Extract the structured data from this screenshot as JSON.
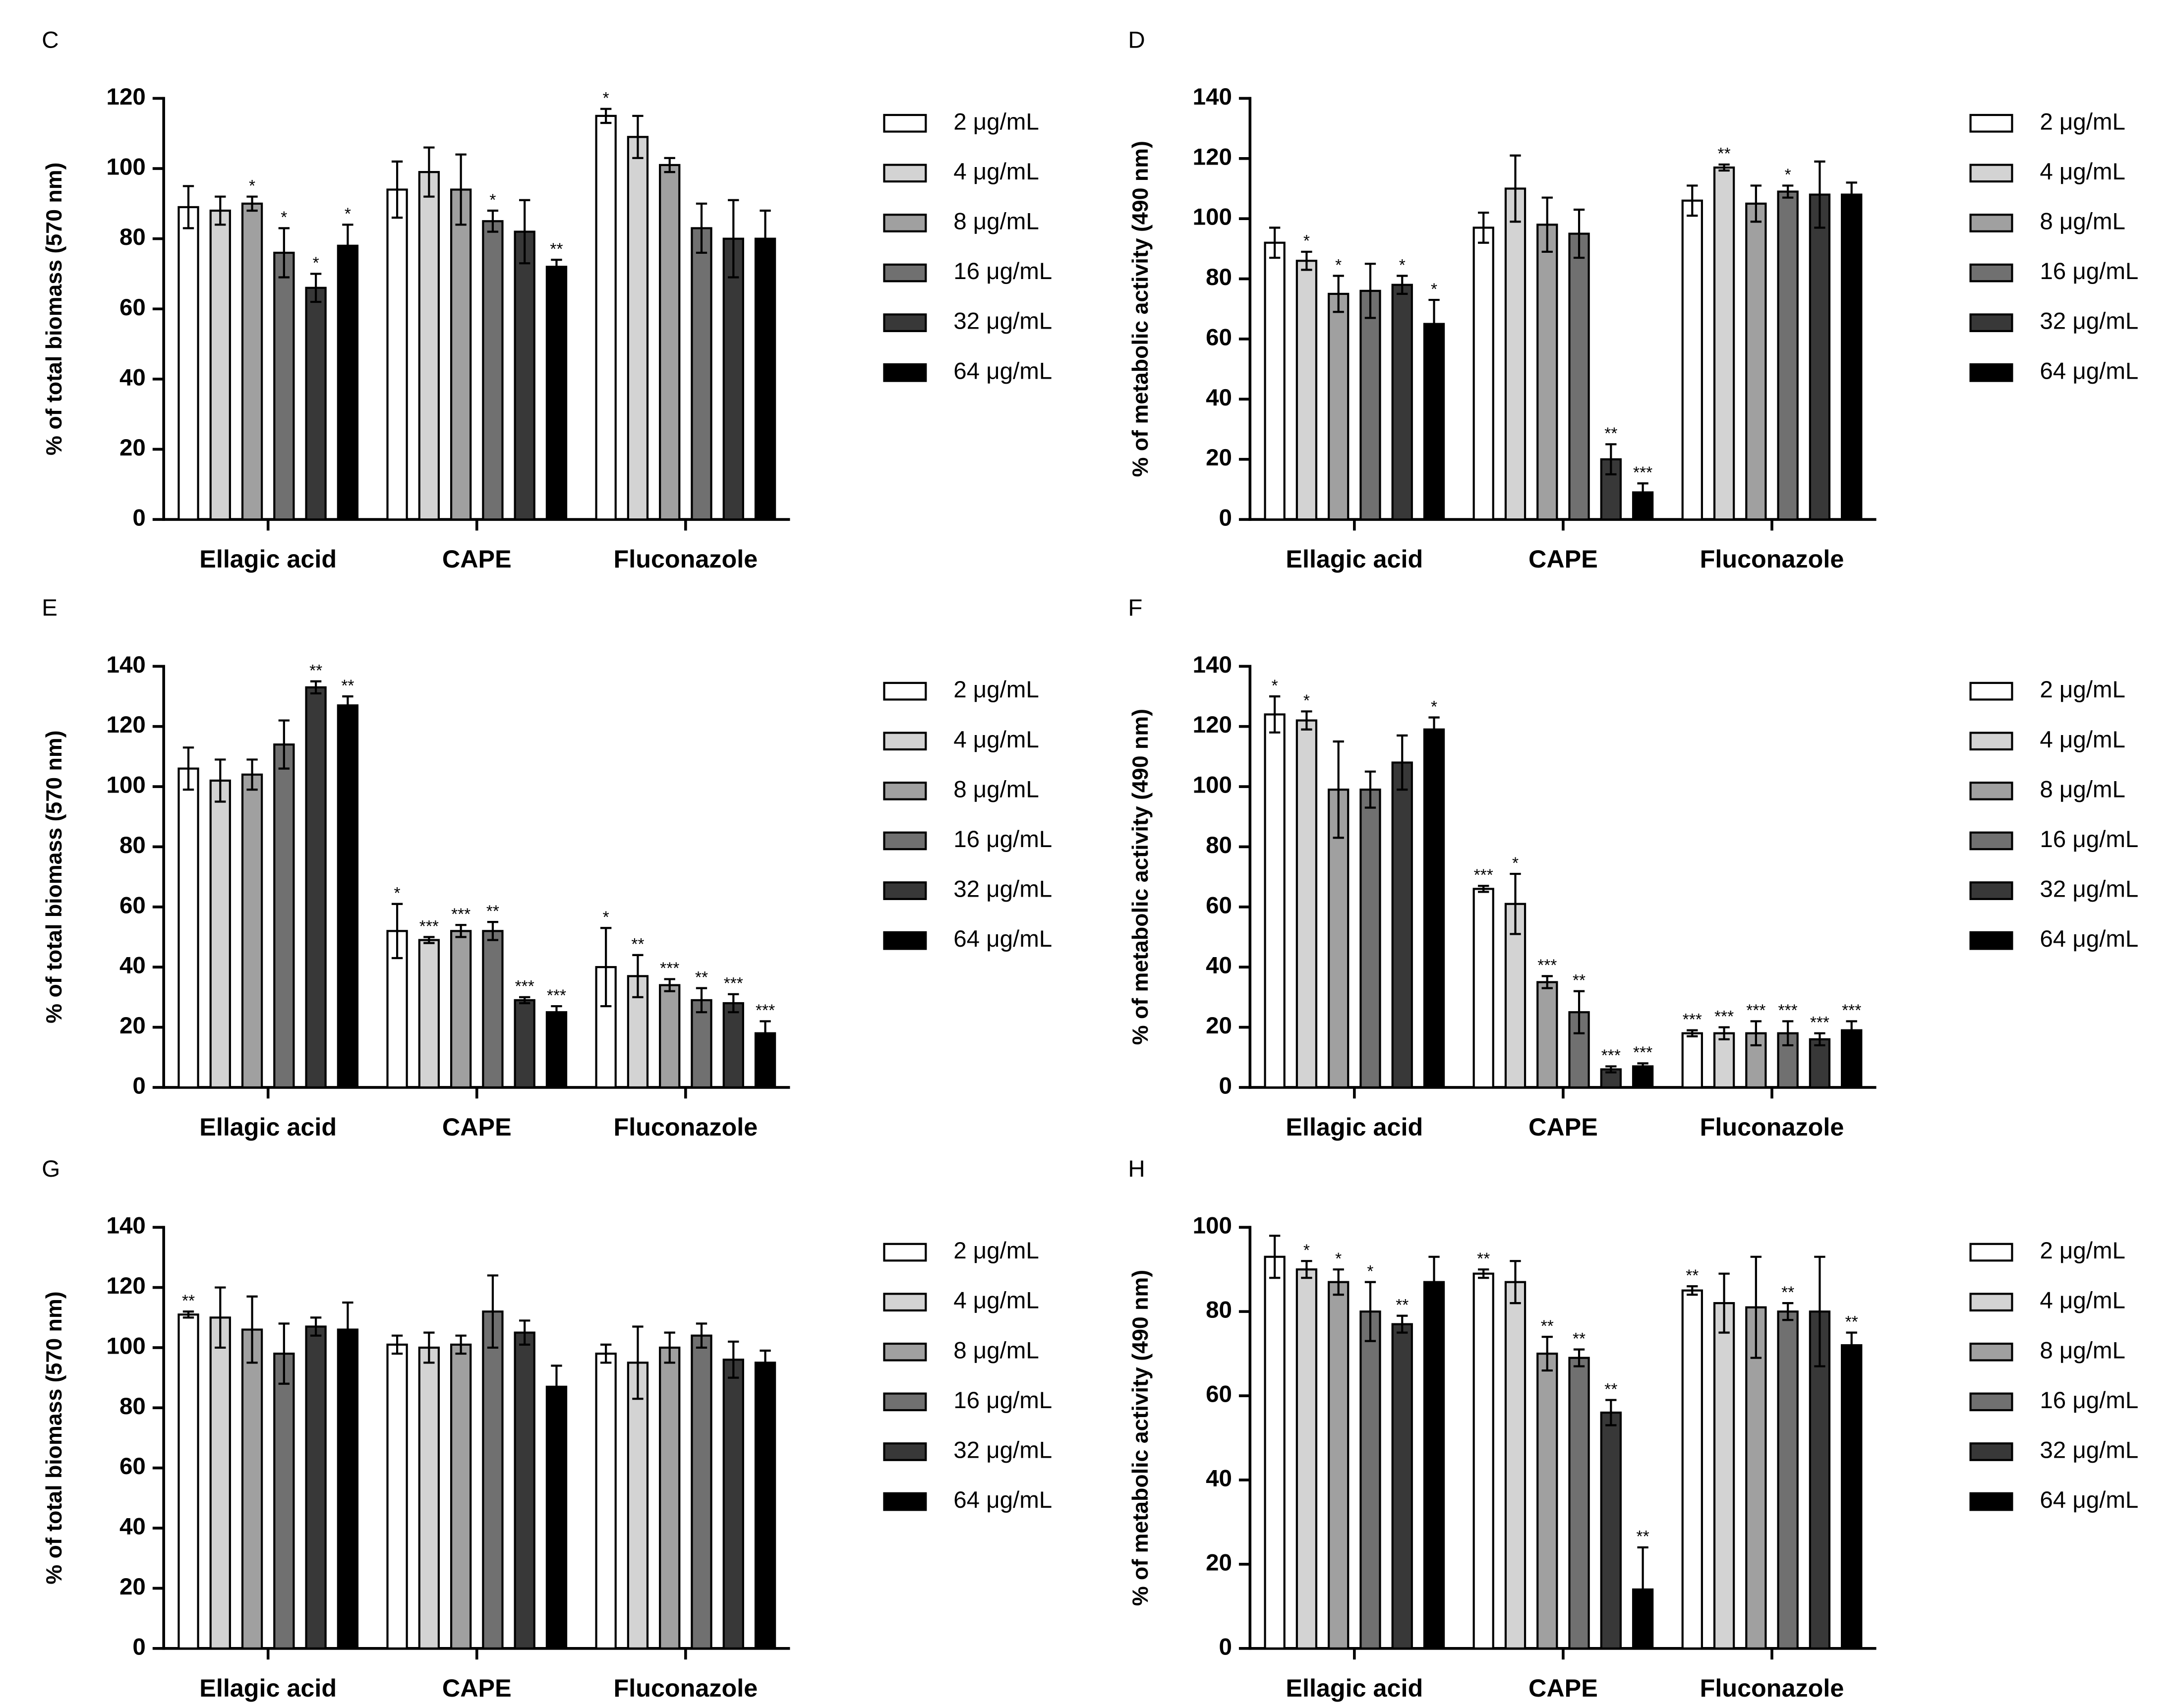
{
  "chart_data": [
    {
      "type": "bar",
      "panel": "C",
      "ylabel": "% of total biomass (570 nm)",
      "categories": [
        "Ellagic acid",
        "CAPE",
        "Fluconazole"
      ],
      "ylim": [
        0,
        120
      ],
      "yticks": [
        0,
        20,
        40,
        60,
        80,
        100,
        120
      ],
      "series": [
        {
          "name": "2 μg/mL",
          "color": "#ffffff",
          "values": [
            89,
            94,
            115
          ],
          "errors": [
            6,
            8,
            2
          ],
          "significance": [
            null,
            null,
            "*"
          ]
        },
        {
          "name": "4 μg/mL",
          "color": "#d3d3d3",
          "values": [
            88,
            99,
            109
          ],
          "errors": [
            4,
            7,
            6
          ],
          "significance": [
            null,
            null,
            null
          ]
        },
        {
          "name": "8 μg/mL",
          "color": "#a0a0a0",
          "values": [
            90,
            94,
            101
          ],
          "errors": [
            2,
            10,
            2
          ],
          "significance": [
            "*",
            null,
            null
          ]
        },
        {
          "name": "16 μg/mL",
          "color": "#707070",
          "values": [
            76,
            85,
            83
          ],
          "errors": [
            7,
            3,
            7
          ],
          "significance": [
            "*",
            "*",
            null
          ]
        },
        {
          "name": "32 μg/mL",
          "color": "#383838",
          "values": [
            66,
            82,
            80
          ],
          "errors": [
            4,
            9,
            11
          ],
          "significance": [
            "*",
            null,
            null
          ]
        },
        {
          "name": "64 μg/mL",
          "color": "#000000",
          "values": [
            78,
            72,
            80
          ],
          "errors": [
            6,
            2,
            8
          ],
          "significance": [
            "*",
            "**",
            null
          ]
        }
      ]
    },
    {
      "type": "bar",
      "panel": "D",
      "ylabel": "% of metabolic activity (490 nm)",
      "categories": [
        "Ellagic acid",
        "CAPE",
        "Fluconazole"
      ],
      "ylim": [
        0,
        140
      ],
      "yticks": [
        0,
        20,
        40,
        60,
        80,
        100,
        120,
        140
      ],
      "series": [
        {
          "name": "2 μg/mL",
          "color": "#ffffff",
          "values": [
            92,
            97,
            106
          ],
          "errors": [
            5,
            5,
            5
          ],
          "significance": [
            null,
            null,
            null
          ]
        },
        {
          "name": "4 μg/mL",
          "color": "#d3d3d3",
          "values": [
            86,
            110,
            117
          ],
          "errors": [
            3,
            11,
            1
          ],
          "significance": [
            "*",
            null,
            "**"
          ]
        },
        {
          "name": "8 μg/mL",
          "color": "#a0a0a0",
          "values": [
            75,
            98,
            105
          ],
          "errors": [
            6,
            9,
            6
          ],
          "significance": [
            "*",
            null,
            null
          ]
        },
        {
          "name": "16 μg/mL",
          "color": "#707070",
          "values": [
            76,
            95,
            109
          ],
          "errors": [
            9,
            8,
            2
          ],
          "significance": [
            null,
            null,
            "*"
          ]
        },
        {
          "name": "32 μg/mL",
          "color": "#383838",
          "values": [
            78,
            20,
            108
          ],
          "errors": [
            3,
            5,
            11
          ],
          "significance": [
            "*",
            "**",
            null
          ]
        },
        {
          "name": "64 μg/mL",
          "color": "#000000",
          "values": [
            65,
            9,
            108
          ],
          "errors": [
            8,
            3,
            4
          ],
          "significance": [
            "*",
            "***",
            null
          ]
        }
      ]
    },
    {
      "type": "bar",
      "panel": "E",
      "ylabel": "% of total biomass (570 nm)",
      "categories": [
        "Ellagic acid",
        "CAPE",
        "Fluconazole"
      ],
      "ylim": [
        0,
        140
      ],
      "yticks": [
        0,
        20,
        40,
        60,
        80,
        100,
        120,
        140
      ],
      "series": [
        {
          "name": "2 μg/mL",
          "color": "#ffffff",
          "values": [
            106,
            52,
            40
          ],
          "errors": [
            7,
            9,
            13
          ],
          "significance": [
            null,
            "*",
            "*"
          ]
        },
        {
          "name": "4 μg/mL",
          "color": "#d3d3d3",
          "values": [
            102,
            49,
            37
          ],
          "errors": [
            7,
            1,
            7
          ],
          "significance": [
            null,
            "***",
            "**"
          ]
        },
        {
          "name": "8 μg/mL",
          "color": "#a0a0a0",
          "values": [
            104,
            52,
            34
          ],
          "errors": [
            5,
            2,
            2
          ],
          "significance": [
            null,
            "***",
            "***"
          ]
        },
        {
          "name": "16 μg/mL",
          "color": "#707070",
          "values": [
            114,
            52,
            29
          ],
          "errors": [
            8,
            3,
            4
          ],
          "significance": [
            null,
            "**",
            "**"
          ]
        },
        {
          "name": "32 μg/mL",
          "color": "#383838",
          "values": [
            133,
            29,
            28
          ],
          "errors": [
            2,
            1,
            3
          ],
          "significance": [
            "**",
            "***",
            "***"
          ]
        },
        {
          "name": "64 μg/mL",
          "color": "#000000",
          "values": [
            127,
            25,
            18
          ],
          "errors": [
            3,
            2,
            4
          ],
          "significance": [
            "**",
            "***",
            "***"
          ]
        }
      ]
    },
    {
      "type": "bar",
      "panel": "F",
      "ylabel": "% of metabolic activity (490 nm)",
      "categories": [
        "Ellagic acid",
        "CAPE",
        "Fluconazole"
      ],
      "ylim": [
        0,
        140
      ],
      "yticks": [
        0,
        20,
        40,
        60,
        80,
        100,
        120,
        140
      ],
      "series": [
        {
          "name": "2 μg/mL",
          "color": "#ffffff",
          "values": [
            124,
            66,
            18
          ],
          "errors": [
            6,
            1,
            1
          ],
          "significance": [
            "*",
            "***",
            "***"
          ]
        },
        {
          "name": "4 μg/mL",
          "color": "#d3d3d3",
          "values": [
            122,
            61,
            18
          ],
          "errors": [
            3,
            10,
            2
          ],
          "significance": [
            "*",
            "*",
            "***"
          ]
        },
        {
          "name": "8 μg/mL",
          "color": "#a0a0a0",
          "values": [
            99,
            35,
            18
          ],
          "errors": [
            16,
            2,
            4
          ],
          "significance": [
            null,
            "***",
            "***"
          ]
        },
        {
          "name": "16 μg/mL",
          "color": "#707070",
          "values": [
            99,
            25,
            18
          ],
          "errors": [
            6,
            7,
            4
          ],
          "significance": [
            null,
            "**",
            "***"
          ]
        },
        {
          "name": "32 μg/mL",
          "color": "#383838",
          "values": [
            108,
            6,
            16
          ],
          "errors": [
            9,
            1,
            2
          ],
          "significance": [
            null,
            "***",
            "***"
          ]
        },
        {
          "name": "64 μg/mL",
          "color": "#000000",
          "values": [
            119,
            7,
            19
          ],
          "errors": [
            4,
            1,
            3
          ],
          "significance": [
            "*",
            "***",
            "***"
          ]
        }
      ]
    },
    {
      "type": "bar",
      "panel": "G",
      "ylabel": "% of total biomass (570 nm)",
      "categories": [
        "Ellagic acid",
        "CAPE",
        "Fluconazole"
      ],
      "ylim": [
        0,
        140
      ],
      "yticks": [
        0,
        20,
        40,
        60,
        80,
        100,
        120,
        140
      ],
      "series": [
        {
          "name": "2 μg/mL",
          "color": "#ffffff",
          "values": [
            111,
            101,
            98
          ],
          "errors": [
            1,
            3,
            3
          ],
          "significance": [
            "**",
            null,
            null
          ]
        },
        {
          "name": "4 μg/mL",
          "color": "#d3d3d3",
          "values": [
            110,
            100,
            95
          ],
          "errors": [
            10,
            5,
            12
          ],
          "significance": [
            null,
            null,
            null
          ]
        },
        {
          "name": "8 μg/mL",
          "color": "#a0a0a0",
          "values": [
            106,
            101,
            100
          ],
          "errors": [
            11,
            3,
            5
          ],
          "significance": [
            null,
            null,
            null
          ]
        },
        {
          "name": "16 μg/mL",
          "color": "#707070",
          "values": [
            98,
            112,
            104
          ],
          "errors": [
            10,
            12,
            4
          ],
          "significance": [
            null,
            null,
            null
          ]
        },
        {
          "name": "32 μg/mL",
          "color": "#383838",
          "values": [
            107,
            105,
            96
          ],
          "errors": [
            3,
            4,
            6
          ],
          "significance": [
            null,
            null,
            null
          ]
        },
        {
          "name": "64 μg/mL",
          "color": "#000000",
          "values": [
            106,
            87,
            95
          ],
          "errors": [
            9,
            7,
            4
          ],
          "significance": [
            null,
            null,
            null
          ]
        }
      ]
    },
    {
      "type": "bar",
      "panel": "H",
      "ylabel": "% of metabolic activity (490 nm)",
      "categories": [
        "Ellagic acid",
        "CAPE",
        "Fluconazole"
      ],
      "ylim": [
        0,
        100
      ],
      "yticks": [
        0,
        20,
        40,
        60,
        80,
        100
      ],
      "series": [
        {
          "name": "2 μg/mL",
          "color": "#ffffff",
          "values": [
            93,
            89,
            85
          ],
          "errors": [
            5,
            1,
            1
          ],
          "significance": [
            null,
            "**",
            "**"
          ]
        },
        {
          "name": "4 μg/mL",
          "color": "#d3d3d3",
          "values": [
            90,
            87,
            82
          ],
          "errors": [
            2,
            5,
            7
          ],
          "significance": [
            "*",
            null,
            null
          ]
        },
        {
          "name": "8 μg/mL",
          "color": "#a0a0a0",
          "values": [
            87,
            70,
            81
          ],
          "errors": [
            3,
            4,
            12
          ],
          "significance": [
            "*",
            "**",
            null
          ]
        },
        {
          "name": "16 μg/mL",
          "color": "#707070",
          "values": [
            80,
            69,
            80
          ],
          "errors": [
            7,
            2,
            2
          ],
          "significance": [
            "*",
            "**",
            "**"
          ]
        },
        {
          "name": "32 μg/mL",
          "color": "#383838",
          "values": [
            77,
            56,
            80
          ],
          "errors": [
            2,
            3,
            13
          ],
          "significance": [
            "**",
            "**",
            null
          ]
        },
        {
          "name": "64 μg/mL",
          "color": "#000000",
          "values": [
            87,
            14,
            72
          ],
          "errors": [
            6,
            10,
            3
          ],
          "significance": [
            null,
            "**",
            "**"
          ]
        }
      ]
    }
  ]
}
